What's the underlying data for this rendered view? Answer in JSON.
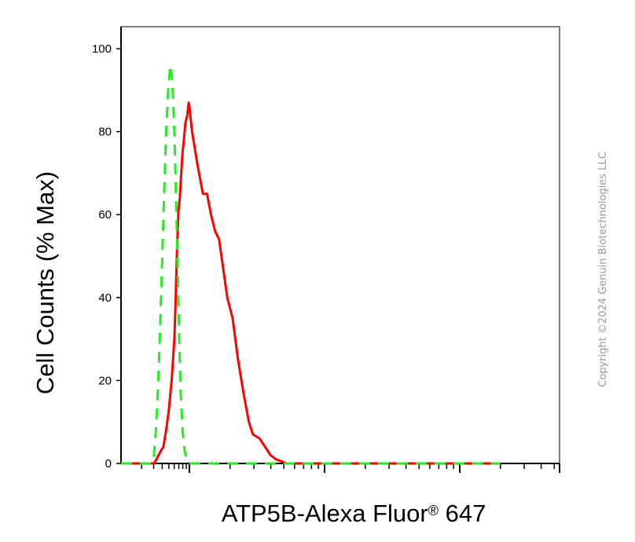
{
  "chart_data": {
    "type": "line",
    "xlabel": "ATP5B-Alexa Fluor",
    "xlabel_mark": "®",
    "xlabel_suffix": " 647",
    "ylabel": "Cell Counts (% Max)",
    "ylim": [
      0,
      100
    ],
    "y_ticks": [
      "0",
      "20",
      "40",
      "60",
      "80",
      "100"
    ],
    "y_tick_values": [
      0,
      20,
      40,
      60,
      80,
      100
    ],
    "x_scale": "log",
    "x_decade_count": 5,
    "grid": false,
    "series": [
      {
        "color": "#ff0000",
        "style": "solid",
        "points": [
          [
            0.0,
            0
          ],
          [
            0.48,
            0
          ],
          [
            0.5,
            0.5
          ],
          [
            0.52,
            1
          ],
          [
            0.55,
            2
          ],
          [
            0.58,
            3
          ],
          [
            0.62,
            4
          ],
          [
            0.66,
            8
          ],
          [
            0.7,
            13
          ],
          [
            0.74,
            20
          ],
          [
            0.78,
            30
          ],
          [
            0.8,
            40
          ],
          [
            0.82,
            52
          ],
          [
            0.84,
            61
          ],
          [
            0.86,
            64
          ],
          [
            0.88,
            70
          ],
          [
            0.9,
            75
          ],
          [
            0.92,
            78
          ],
          [
            0.94,
            82
          ],
          [
            0.97,
            84
          ],
          [
            0.99,
            87
          ],
          [
            1.0,
            86
          ],
          [
            1.02,
            80
          ],
          [
            1.06,
            72
          ],
          [
            1.1,
            65
          ],
          [
            1.13,
            65
          ],
          [
            1.16,
            60
          ],
          [
            1.19,
            56
          ],
          [
            1.22,
            54
          ],
          [
            1.25,
            47
          ],
          [
            1.28,
            40
          ],
          [
            1.32,
            35
          ],
          [
            1.36,
            25
          ],
          [
            1.4,
            17
          ],
          [
            1.44,
            10
          ],
          [
            1.47,
            7
          ],
          [
            1.52,
            6
          ],
          [
            1.56,
            4
          ],
          [
            1.6,
            2
          ],
          [
            1.64,
            1
          ],
          [
            1.68,
            0.5
          ],
          [
            1.72,
            0
          ],
          [
            3.3,
            0
          ]
        ]
      },
      {
        "color": "#22ee22",
        "style": "dashed",
        "points": [
          [
            0.0,
            0
          ],
          [
            0.45,
            0
          ],
          [
            0.48,
            2
          ],
          [
            0.51,
            8
          ],
          [
            0.54,
            18
          ],
          [
            0.57,
            32
          ],
          [
            0.6,
            48
          ],
          [
            0.63,
            65
          ],
          [
            0.66,
            80
          ],
          [
            0.69,
            90
          ],
          [
            0.72,
            96
          ],
          [
            0.75,
            92
          ],
          [
            0.78,
            80
          ],
          [
            0.81,
            60
          ],
          [
            0.84,
            38
          ],
          [
            0.87,
            18
          ],
          [
            0.9,
            8
          ],
          [
            0.93,
            3
          ],
          [
            0.96,
            1
          ],
          [
            0.99,
            0
          ],
          [
            3.3,
            0
          ]
        ]
      }
    ]
  },
  "copyright": "Copyright ©2024 Genuin Biotechnologies LLC"
}
